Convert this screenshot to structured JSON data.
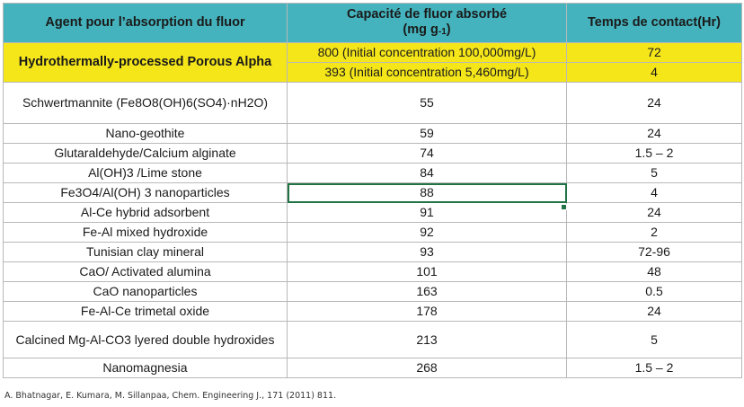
{
  "header": {
    "col1": "Agent pour l’absorption du fluor",
    "col2_line1": "Capacité de fluor absorbé",
    "col2_unit": "(mg g",
    "col2_sup": "-1",
    "col2_close": ")",
    "col3": "Temps de contact(Hr)"
  },
  "highlight": {
    "name": "Hydrothermally-processed Porous Alpha",
    "rows": [
      {
        "capacity": "800 (Initial concentration 100,000mg/L)",
        "time": "72"
      },
      {
        "capacity": "393 (Initial concentration 5,460mg/L)",
        "time": "4"
      }
    ],
    "color": "#f5e61a"
  },
  "rows": [
    {
      "agent": "Schwertmannite (Fe8O8(OH)6(SO4)·nH2O)",
      "capacity": "55",
      "time": "24"
    },
    {
      "agent": "Nano-geothite",
      "capacity": "59",
      "time": "24"
    },
    {
      "agent": "Glutaraldehyde/Calcium alginate",
      "capacity": "74",
      "time": "1.5 – 2"
    },
    {
      "agent": "Al(OH)3 /Lime stone",
      "capacity": "84",
      "time": "5"
    },
    {
      "agent": "Fe3O4/Al(OH) 3 nanoparticles",
      "capacity": "88",
      "time": "4"
    },
    {
      "agent": "Al-Ce hybrid adsorbent",
      "capacity": "91",
      "time": "24"
    },
    {
      "agent": "Fe-Al mixed hydroxide",
      "capacity": "92",
      "time": "2"
    },
    {
      "agent": "Tunisian clay mineral",
      "capacity": "93",
      "time": "72-96"
    },
    {
      "agent": "CaO/ Activated alumina",
      "capacity": "101",
      "time": "48"
    },
    {
      "agent": "CaO nanoparticles",
      "capacity": "163",
      "time": "0.5"
    },
    {
      "agent": "Fe-Al-Ce trimetal oxide",
      "capacity": "178",
      "time": "24"
    },
    {
      "agent": "Calcined Mg-Al-CO3 lyered double hydroxides",
      "capacity": "213",
      "time": "5"
    },
    {
      "agent": "Nanomagnesia",
      "capacity": "268",
      "time": "1.5 – 2"
    }
  ],
  "citation": "A. Bhatnagar, E. Kumara, M. Sillanpaa, Chem. Engineering J., 171 (2011) 811.",
  "colors": {
    "header_bg": "#45b3bd",
    "selection": "#217346"
  }
}
